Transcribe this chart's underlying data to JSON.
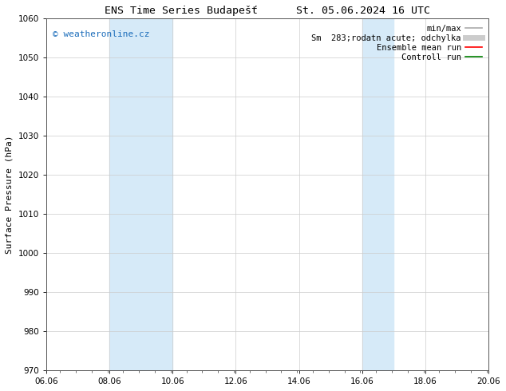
{
  "title": "ENS Time Series Budapešť      St. 05.06.2024 16 UTC",
  "ylabel": "Surface Pressure (hPa)",
  "ylim": [
    970,
    1060
  ],
  "yticks": [
    970,
    980,
    990,
    1000,
    1010,
    1020,
    1030,
    1040,
    1050,
    1060
  ],
  "xlim": [
    6.06,
    20.06
  ],
  "xtick_labels": [
    "06.06",
    "08.06",
    "10.06",
    "12.06",
    "14.06",
    "16.06",
    "18.06",
    "20.06"
  ],
  "xtick_positions": [
    6.06,
    8.06,
    10.06,
    12.06,
    14.06,
    16.06,
    18.06,
    20.06
  ],
  "shaded_bands": [
    {
      "x_start": 8.06,
      "x_end": 10.06
    },
    {
      "x_start": 16.06,
      "x_end": 17.06
    }
  ],
  "band_color": "#d6eaf8",
  "watermark_text": "© weatheronline.cz",
  "watermark_color": "#1a6cba",
  "watermark_fontsize": 8,
  "legend_entries": [
    {
      "label": "min/max",
      "color": "#aaaaaa",
      "lw": 1.2,
      "style": "-"
    },
    {
      "label": "Sm  283;rodatn acute; odchylka",
      "color": "#cccccc",
      "lw": 5,
      "style": "-"
    },
    {
      "label": "Ensemble mean run",
      "color": "red",
      "lw": 1.2,
      "style": "-"
    },
    {
      "label": "Controll run",
      "color": "green",
      "lw": 1.2,
      "style": "-"
    }
  ],
  "bg_color": "#ffffff",
  "axes_bg_color": "#ffffff",
  "grid_color": "#cccccc",
  "title_fontsize": 9.5,
  "axis_label_fontsize": 8,
  "tick_fontsize": 7.5,
  "legend_fontsize": 7.5
}
